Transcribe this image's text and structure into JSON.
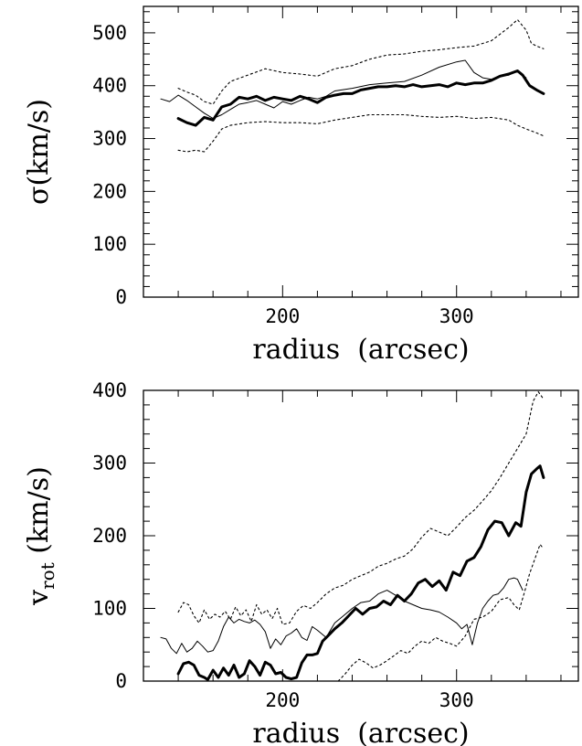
{
  "chart_data": [
    {
      "type": "line",
      "xlabel": "radius  (arcsec)",
      "ylabel": "σ(km/s)",
      "xlim": [
        120,
        370
      ],
      "ylim": [
        0,
        550
      ],
      "xticks": [
        200,
        300
      ],
      "yticks": [
        0,
        100,
        200,
        300,
        400,
        500
      ],
      "grid": false,
      "series": [
        {
          "style": "thick",
          "x": [
            140,
            145,
            150,
            155,
            160,
            165,
            170,
            175,
            180,
            185,
            190,
            195,
            200,
            205,
            210,
            215,
            220,
            225,
            230,
            235,
            240,
            245,
            250,
            255,
            260,
            265,
            270,
            275,
            280,
            285,
            290,
            295,
            300,
            305,
            310,
            315,
            320,
            325,
            330,
            335,
            338,
            342,
            346,
            350
          ],
          "y": [
            338,
            330,
            325,
            340,
            335,
            360,
            365,
            378,
            375,
            380,
            372,
            378,
            375,
            372,
            380,
            375,
            368,
            378,
            382,
            385,
            385,
            392,
            395,
            398,
            398,
            400,
            398,
            402,
            398,
            400,
            402,
            398,
            405,
            402,
            405,
            405,
            410,
            418,
            422,
            428,
            420,
            400,
            392,
            385
          ]
        },
        {
          "style": "thin",
          "x": [
            130,
            135,
            140,
            145,
            150,
            155,
            160,
            165,
            170,
            175,
            180,
            185,
            190,
            195,
            200,
            205,
            210,
            215,
            220,
            225,
            230,
            240,
            250,
            260,
            270,
            280,
            290,
            300,
            305,
            310,
            315,
            320,
            325,
            330,
            335,
            340
          ],
          "y": [
            375,
            370,
            382,
            372,
            360,
            348,
            338,
            345,
            355,
            365,
            368,
            372,
            365,
            358,
            370,
            365,
            372,
            378,
            375,
            380,
            390,
            395,
            402,
            405,
            408,
            420,
            435,
            445,
            448,
            425,
            415,
            412,
            418,
            420,
            428,
            415
          ]
        },
        {
          "style": "dotted",
          "x": [
            140,
            145,
            150,
            155,
            160,
            165,
            170,
            180,
            190,
            200,
            210,
            220,
            230,
            240,
            250,
            260,
            270,
            280,
            290,
            300,
            310,
            320,
            330,
            335,
            340,
            343,
            346,
            350
          ],
          "y": [
            395,
            388,
            382,
            370,
            365,
            390,
            408,
            420,
            432,
            425,
            422,
            418,
            432,
            438,
            450,
            458,
            460,
            465,
            468,
            472,
            475,
            485,
            510,
            525,
            505,
            480,
            475,
            470
          ]
        },
        {
          "style": "dotted",
          "x": [
            140,
            145,
            150,
            155,
            160,
            165,
            170,
            180,
            190,
            200,
            210,
            220,
            230,
            240,
            250,
            260,
            270,
            280,
            290,
            300,
            310,
            320,
            330,
            335,
            340,
            345,
            350
          ],
          "y": [
            278,
            275,
            278,
            275,
            295,
            318,
            325,
            330,
            332,
            330,
            330,
            328,
            335,
            340,
            345,
            345,
            345,
            342,
            340,
            342,
            338,
            340,
            335,
            325,
            318,
            312,
            305
          ]
        }
      ]
    },
    {
      "type": "line",
      "xlabel": "radius  (arcsec)",
      "ylabel": "v_rot (km/s)",
      "xlim": [
        120,
        370
      ],
      "ylim": [
        0,
        400
      ],
      "xticks": [
        200,
        300
      ],
      "yticks": [
        0,
        100,
        200,
        300,
        400
      ],
      "grid": false,
      "series": [
        {
          "style": "thick",
          "x": [
            140,
            143,
            146,
            149,
            152,
            155,
            157,
            160,
            163,
            166,
            169,
            172,
            175,
            178,
            181,
            184,
            187,
            190,
            193,
            196,
            199,
            202,
            205,
            208,
            211,
            214,
            217,
            220,
            223,
            226,
            230,
            234,
            238,
            242,
            246,
            250,
            254,
            258,
            262,
            266,
            270,
            274,
            278,
            282,
            286,
            290,
            294,
            298,
            302,
            306,
            310,
            314,
            318,
            322,
            326,
            330,
            334,
            337,
            340,
            343,
            346,
            348,
            350
          ],
          "y": [
            10,
            24,
            26,
            22,
            8,
            5,
            2,
            15,
            5,
            18,
            8,
            22,
            5,
            10,
            28,
            20,
            8,
            26,
            22,
            10,
            12,
            5,
            3,
            5,
            25,
            36,
            36,
            38,
            55,
            62,
            72,
            80,
            90,
            100,
            92,
            100,
            102,
            110,
            105,
            118,
            110,
            120,
            135,
            140,
            130,
            138,
            125,
            150,
            145,
            165,
            170,
            185,
            208,
            220,
            218,
            200,
            218,
            213,
            260,
            285,
            292,
            296,
            280
          ]
        },
        {
          "style": "thin",
          "x": [
            130,
            133,
            136,
            139,
            142,
            145,
            148,
            151,
            154,
            157,
            160,
            163,
            166,
            169,
            172,
            175,
            178,
            181,
            184,
            187,
            190,
            193,
            196,
            199,
            202,
            205,
            208,
            211,
            214,
            217,
            220,
            225,
            230,
            235,
            240,
            245,
            250,
            255,
            260,
            265,
            270,
            275,
            280,
            285,
            290,
            295,
            300,
            303,
            306,
            309,
            312,
            315,
            318,
            321,
            324,
            327,
            330,
            333,
            335,
            338
          ],
          "y": [
            60,
            58,
            45,
            38,
            52,
            40,
            45,
            55,
            48,
            40,
            42,
            55,
            75,
            88,
            80,
            85,
            82,
            80,
            84,
            78,
            68,
            45,
            58,
            50,
            62,
            66,
            72,
            60,
            56,
            75,
            70,
            60,
            80,
            90,
            100,
            108,
            110,
            120,
            125,
            118,
            110,
            105,
            100,
            98,
            95,
            88,
            80,
            72,
            78,
            50,
            80,
            100,
            110,
            118,
            120,
            128,
            140,
            142,
            140,
            125
          ]
        },
        {
          "style": "dotted",
          "x": [
            140,
            143,
            146,
            149,
            152,
            155,
            158,
            161,
            164,
            167,
            170,
            173,
            176,
            179,
            182,
            185,
            188,
            191,
            194,
            197,
            200,
            204,
            208,
            212,
            216,
            220,
            225,
            230,
            235,
            240,
            245,
            250,
            255,
            260,
            265,
            270,
            275,
            280,
            285,
            290,
            295,
            300,
            305,
            310,
            315,
            320,
            325,
            330,
            335,
            340,
            344,
            347,
            350
          ],
          "y": [
            95,
            108,
            105,
            90,
            80,
            98,
            85,
            92,
            88,
            96,
            85,
            102,
            90,
            98,
            82,
            105,
            92,
            98,
            86,
            100,
            78,
            80,
            96,
            104,
            100,
            108,
            120,
            128,
            132,
            140,
            145,
            150,
            158,
            162,
            168,
            172,
            182,
            198,
            210,
            205,
            200,
            212,
            225,
            235,
            248,
            262,
            280,
            300,
            320,
            340,
            385,
            398,
            388
          ]
        },
        {
          "style": "dotted",
          "x": [
            232,
            236,
            240,
            244,
            248,
            252,
            256,
            260,
            264,
            268,
            272,
            276,
            280,
            284,
            288,
            292,
            296,
            300,
            305,
            310,
            315,
            320,
            325,
            330,
            333,
            336,
            339,
            342,
            345,
            348,
            350
          ],
          "y": [
            0,
            10,
            22,
            30,
            25,
            18,
            22,
            28,
            35,
            42,
            38,
            48,
            55,
            52,
            60,
            55,
            52,
            48,
            62,
            85,
            88,
            96,
            112,
            115,
            105,
            98,
            122,
            148,
            168,
            188,
            182
          ]
        }
      ]
    }
  ]
}
